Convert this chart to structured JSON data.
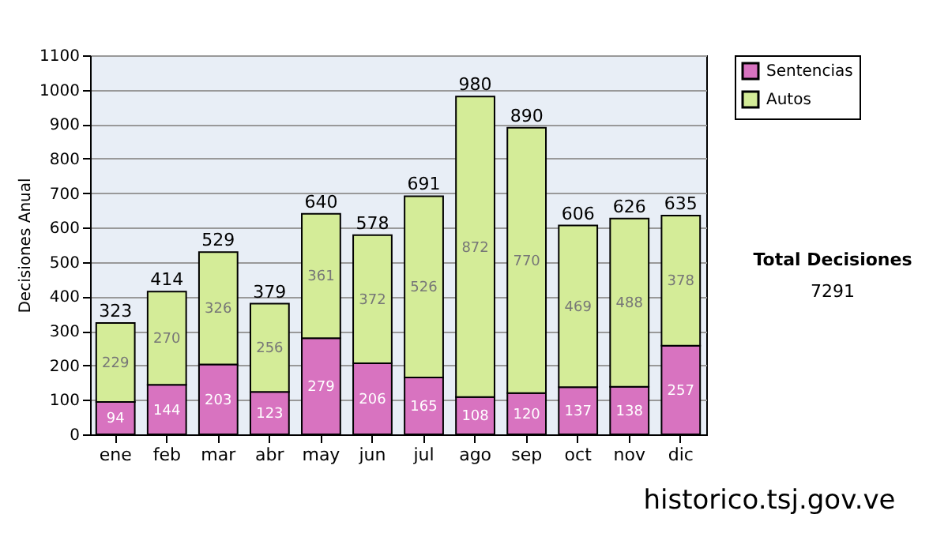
{
  "chart_data": {
    "type": "bar",
    "stacked": true,
    "ylabel": "Decisiones Anual",
    "categories": [
      "ene",
      "feb",
      "mar",
      "abr",
      "may",
      "jun",
      "jul",
      "ago",
      "sep",
      "oct",
      "nov",
      "dic"
    ],
    "series": [
      {
        "name": "Sentencias",
        "color": "#d873c0",
        "values": [
          94,
          144,
          203,
          123,
          279,
          206,
          165,
          108,
          120,
          137,
          138,
          257
        ]
      },
      {
        "name": "Autos",
        "color": "#d4ec98",
        "values": [
          229,
          270,
          326,
          256,
          361,
          372,
          526,
          872,
          770,
          469,
          488,
          378
        ]
      }
    ],
    "totals": [
      "323",
      "414",
      "529",
      "379",
      "640",
      "578",
      "691",
      "980",
      "890",
      "606",
      "626",
      "635"
    ],
    "data_labels": true,
    "ylim": [
      0,
      1100
    ],
    "yticks": [
      0,
      100,
      200,
      300,
      400,
      500,
      600,
      700,
      800,
      900,
      1000,
      1100
    ],
    "grid": "y",
    "legend": "right",
    "annotations": [
      "Total Decisiones",
      "7291",
      "historico.tsj.gov.ve"
    ]
  }
}
